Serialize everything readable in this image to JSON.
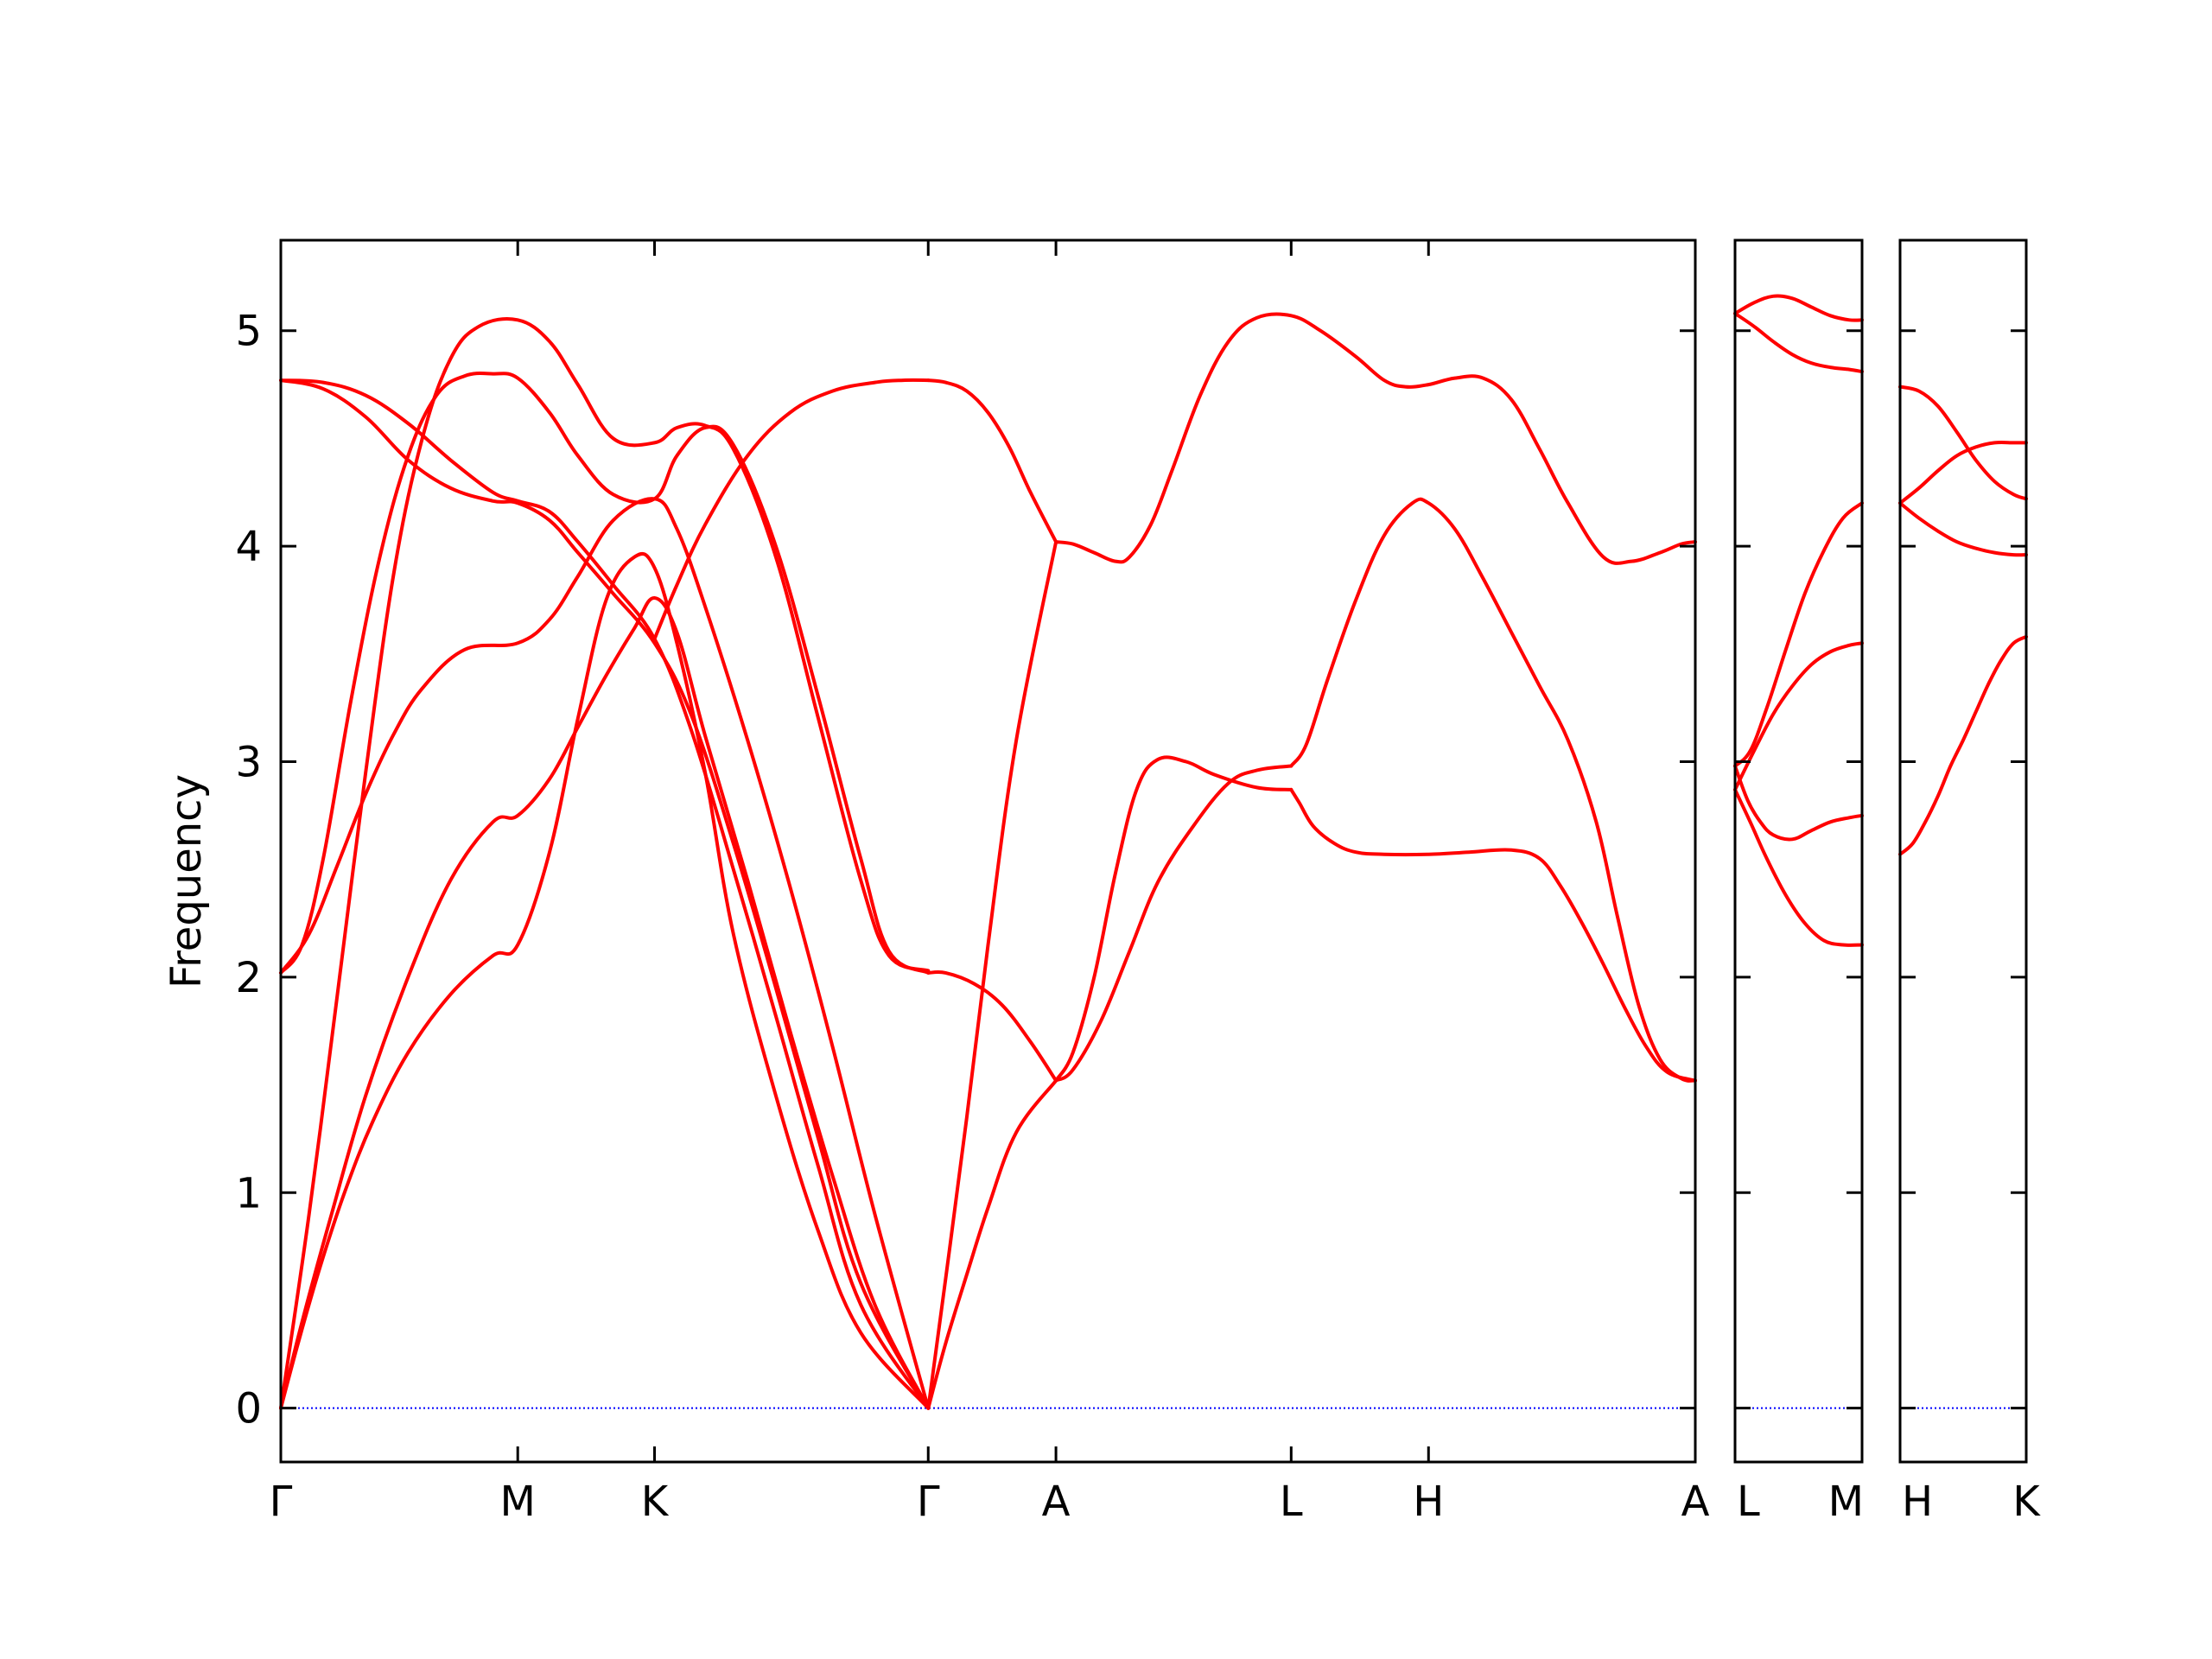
{
  "chart_data": {
    "type": "line",
    "title": "",
    "ylabel": "Frequency",
    "ylim": [
      -0.25,
      5.42
    ],
    "yticks": [
      0,
      1,
      2,
      3,
      4,
      5
    ],
    "line_color": "#ff0000",
    "zero_line_color": "#0000ff",
    "grid": false,
    "panels": [
      {
        "name": "Γ-M-K-Γ-A-L-H-A",
        "xlim": [
          0,
          1
        ],
        "high_symmetry_points": [
          {
            "label": "Γ",
            "x": 0.0
          },
          {
            "label": "M",
            "x": 0.1675
          },
          {
            "label": "K",
            "x": 0.2642
          },
          {
            "label": "Γ",
            "x": 0.4577
          },
          {
            "label": "A",
            "x": 0.548
          },
          {
            "label": "L",
            "x": 0.7143
          },
          {
            "label": "H",
            "x": 0.8114
          },
          {
            "label": "A",
            "x": 1.0
          }
        ],
        "bands": [
          {
            "x": [
              0,
              0.013,
              0.028,
              0.045,
              0.065,
              0.09,
              0.12,
              0.15,
              0.1675,
              0.19,
              0.21,
              0.23,
              0.25,
              0.2642,
              0.28,
              0.3,
              0.32,
              0.35,
              0.38,
              0.41,
              0.4577
            ],
            "y": [
              0,
              0.32,
              0.66,
              1.0,
              1.33,
              1.65,
              1.92,
              2.1,
              2.15,
              2.58,
              3.2,
              3.75,
              3.95,
              3.9,
              3.55,
              2.95,
              2.2,
              1.45,
              0.82,
              0.35,
              0
            ]
          },
          {
            "x": [
              0,
              0.015,
              0.035,
              0.06,
              0.09,
              0.12,
              0.15,
              0.1675,
              0.19,
              0.21,
              0.23,
              0.25,
              0.2642,
              0.28,
              0.3,
              0.33,
              0.36,
              0.39,
              0.42,
              0.4577
            ],
            "y": [
              0,
              0.4,
              0.88,
              1.45,
              2.0,
              2.45,
              2.72,
              2.75,
              2.92,
              3.16,
              3.4,
              3.62,
              3.76,
              3.6,
              3.12,
              2.45,
              1.75,
              1.08,
              0.48,
              0
            ]
          },
          {
            "x": [
              0,
              0.02,
              0.04,
              0.06,
              0.08,
              0.1,
              0.13,
              0.1675,
              0.19,
              0.21,
              0.235,
              0.2642,
              0.28,
              0.3,
              0.33,
              0.36,
              0.39,
              0.42,
              0.4577
            ],
            "y": [
              2.02,
              2.2,
              2.52,
              2.85,
              3.13,
              3.34,
              3.52,
              3.55,
              3.66,
              3.86,
              4.12,
              4.22,
              4.08,
              3.72,
              3.1,
              2.42,
              1.68,
              0.9,
              0
            ]
          },
          {
            "x": [
              0,
              0.015,
              0.03,
              0.05,
              0.07,
              0.09,
              0.11,
              0.13,
              0.15,
              0.1675,
              0.19,
              0.21,
              0.235,
              0.2642,
              0.28,
              0.3,
              0.32,
              0.35,
              0.38,
              0.41,
              0.43,
              0.4577
            ],
            "y": [
              2.02,
              2.15,
              2.55,
              3.3,
              3.95,
              4.42,
              4.7,
              4.79,
              4.8,
              4.78,
              4.62,
              4.42,
              4.24,
              4.22,
              4.42,
              4.55,
              4.47,
              4.0,
              3.3,
              2.55,
              2.12,
              2.02
            ]
          },
          {
            "x": [
              0,
              0.02,
              0.04,
              0.06,
              0.08,
              0.1,
              0.12,
              0.14,
              0.1675,
              0.19,
              0.21,
              0.235,
              0.2642,
              0.28,
              0.3,
              0.32,
              0.35,
              0.38,
              0.41,
              0.43,
              0.4577
            ],
            "y": [
              0,
              0.9,
              1.92,
              2.95,
              3.88,
              4.5,
              4.87,
              5.02,
              5.05,
              4.95,
              4.75,
              4.5,
              4.48,
              4.55,
              4.56,
              4.45,
              3.95,
              3.2,
              2.45,
              2.1,
              2.03
            ]
          },
          {
            "x": [
              0,
              0.03,
              0.06,
              0.09,
              0.12,
              0.15,
              0.1675,
              0.19,
              0.21,
              0.235,
              0.2642,
              0.29,
              0.32,
              0.35,
              0.38,
              0.41,
              0.4577
            ],
            "y": [
              4.77,
              4.73,
              4.6,
              4.4,
              4.27,
              4.21,
              4.2,
              4.12,
              3.97,
              3.78,
              3.55,
              3.22,
              2.62,
              1.95,
              1.25,
              0.58,
              0
            ]
          },
          {
            "x": [
              0,
              0.03,
              0.06,
              0.09,
              0.12,
              0.15,
              0.1675,
              0.19,
              0.21,
              0.235,
              0.2642,
              0.29,
              0.32,
              0.35,
              0.38,
              0.41,
              0.4577
            ],
            "y": [
              4.77,
              4.76,
              4.7,
              4.57,
              4.4,
              4.25,
              4.21,
              4.16,
              4.02,
              3.82,
              3.57,
              3.15,
              2.5,
              1.82,
              1.12,
              0.48,
              0
            ]
          },
          {
            "x": [
              0.2642,
              0.28,
              0.3,
              0.33,
              0.36,
              0.39,
              0.42,
              0.44,
              0.4577
            ],
            "y": [
              3.57,
              3.82,
              4.1,
              4.42,
              4.62,
              4.72,
              4.76,
              4.77,
              4.77
            ]
          },
          {
            "x": [
              0.4577,
              0.47,
              0.485,
              0.5,
              0.515,
              0.53,
              0.548
            ],
            "y": [
              4.77,
              4.76,
              4.72,
              4.62,
              4.46,
              4.25,
              4.02
            ]
          },
          {
            "x": [
              0.4577,
              0.47,
              0.485,
              0.5,
              0.52,
              0.548
            ],
            "y": [
              0,
              0.6,
              1.35,
              2.15,
              3.1,
              4.02
            ]
          },
          {
            "x": [
              0.4577,
              0.47,
              0.485,
              0.5,
              0.52,
              0.548
            ],
            "y": [
              0,
              0.3,
              0.62,
              0.93,
              1.28,
              1.52
            ]
          },
          {
            "x": [
              0.4577,
              0.47,
              0.49,
              0.51,
              0.53,
              0.548
            ],
            "y": [
              2.02,
              2.02,
              1.97,
              1.87,
              1.7,
              1.52
            ]
          },
          {
            "x": [
              0.548,
              0.56,
              0.575,
              0.59,
              0.605,
              0.62,
              0.64,
              0.66,
              0.69,
              0.7143
            ],
            "y": [
              1.52,
              1.65,
              2.0,
              2.48,
              2.87,
              3.01,
              3.0,
              2.94,
              2.88,
              2.87
            ]
          },
          {
            "x": [
              0.548,
              0.56,
              0.58,
              0.6,
              0.62,
              0.645,
              0.67,
              0.69,
              0.7143
            ],
            "y": [
              1.52,
              1.57,
              1.8,
              2.12,
              2.44,
              2.7,
              2.9,
              2.96,
              2.98
            ]
          },
          {
            "x": [
              0.7143,
              0.72,
              0.73,
              0.745,
              0.76,
              0.78,
              0.8114,
              0.84,
              0.87,
              0.89,
              0.905,
              0.92,
              0.935,
              0.95,
              0.965,
              0.98,
              1.0
            ],
            "y": [
              2.87,
              2.81,
              2.7,
              2.62,
              2.58,
              2.57,
              2.57,
              2.58,
              2.59,
              2.55,
              2.42,
              2.25,
              2.06,
              1.86,
              1.68,
              1.56,
              1.52
            ]
          },
          {
            "x": [
              0.7143,
              0.725,
              0.74,
              0.76,
              0.78,
              0.8,
              0.8114,
              0.83,
              0.85,
              0.87,
              0.89,
              0.91,
              0.93,
              0.945,
              0.96,
              0.975,
              0.99,
              1.0
            ],
            "y": [
              2.98,
              3.08,
              3.38,
              3.75,
              4.05,
              4.2,
              4.2,
              4.08,
              3.85,
              3.6,
              3.35,
              3.1,
              2.72,
              2.28,
              1.87,
              1.62,
              1.53,
              1.52
            ]
          },
          {
            "x": [
              0.548,
              0.56,
              0.575,
              0.59,
              0.6,
              0.615,
              0.63,
              0.65,
              0.67,
              0.69,
              0.7143,
              0.735,
              0.76,
              0.78,
              0.795,
              0.8114,
              0.83,
              0.85,
              0.87,
              0.89,
              0.91,
              0.935,
              0.955,
              0.975,
              0.99,
              1.0
            ],
            "y": [
              4.02,
              4.01,
              3.97,
              3.93,
              3.95,
              4.1,
              4.35,
              4.7,
              4.95,
              5.06,
              5.07,
              5.0,
              4.88,
              4.77,
              4.74,
              4.75,
              4.78,
              4.78,
              4.68,
              4.45,
              4.2,
              3.95,
              3.93,
              3.97,
              4.01,
              4.02
            ]
          }
        ]
      },
      {
        "name": "L-M",
        "xlim": [
          0,
          1
        ],
        "high_symmetry_points": [
          {
            "label": "L",
            "x": 0.0
          },
          {
            "label": "M",
            "x": 1.0
          }
        ],
        "bands": [
          {
            "x": [
              0,
              0.15,
              0.3,
              0.45,
              0.6,
              0.75,
              0.9,
              1.0
            ],
            "y": [
              5.08,
              5.13,
              5.16,
              5.15,
              5.11,
              5.07,
              5.05,
              5.05
            ]
          },
          {
            "x": [
              0,
              0.15,
              0.3,
              0.45,
              0.6,
              0.75,
              0.9,
              1.0
            ],
            "y": [
              5.08,
              5.02,
              4.95,
              4.89,
              4.85,
              4.83,
              4.82,
              4.81
            ]
          },
          {
            "x": [
              0,
              0.15,
              0.3,
              0.45,
              0.6,
              0.75,
              0.9,
              1.0
            ],
            "y": [
              2.87,
              3.05,
              3.22,
              3.35,
              3.45,
              3.51,
              3.54,
              3.55
            ]
          },
          {
            "x": [
              0,
              0.12,
              0.25,
              0.4,
              0.55,
              0.7,
              0.85,
              1.0
            ],
            "y": [
              2.98,
              3.05,
              3.25,
              3.52,
              3.78,
              3.98,
              4.13,
              4.2
            ]
          },
          {
            "x": [
              0,
              0.1,
              0.2,
              0.3,
              0.45,
              0.6,
              0.75,
              0.9,
              1.0
            ],
            "y": [
              2.98,
              2.82,
              2.72,
              2.66,
              2.64,
              2.68,
              2.72,
              2.74,
              2.75
            ]
          },
          {
            "x": [
              0,
              0.12,
              0.25,
              0.4,
              0.55,
              0.7,
              0.85,
              1.0
            ],
            "y": [
              2.87,
              2.72,
              2.55,
              2.38,
              2.25,
              2.17,
              2.15,
              2.15
            ]
          }
        ]
      },
      {
        "name": "H-K",
        "xlim": [
          0,
          1
        ],
        "high_symmetry_points": [
          {
            "label": "H",
            "x": 0.0
          },
          {
            "label": "K",
            "x": 1.0
          }
        ],
        "bands": [
          {
            "x": [
              0,
              0.15,
              0.3,
              0.45,
              0.6,
              0.75,
              0.9,
              1.0
            ],
            "y": [
              4.74,
              4.72,
              4.65,
              4.53,
              4.4,
              4.3,
              4.24,
              4.22
            ]
          },
          {
            "x": [
              0,
              0.15,
              0.3,
              0.45,
              0.6,
              0.75,
              0.9,
              1.0
            ],
            "y": [
              4.2,
              4.27,
              4.35,
              4.42,
              4.46,
              4.48,
              4.48,
              4.48
            ]
          },
          {
            "x": [
              0,
              0.15,
              0.3,
              0.45,
              0.6,
              0.75,
              0.9,
              1.0
            ],
            "y": [
              4.2,
              4.13,
              4.07,
              4.02,
              3.99,
              3.97,
              3.96,
              3.96
            ]
          },
          {
            "x": [
              0,
              0.1,
              0.2,
              0.3,
              0.4,
              0.5,
              0.6,
              0.7,
              0.8,
              0.9,
              1.0
            ],
            "y": [
              2.57,
              2.62,
              2.72,
              2.84,
              2.98,
              3.1,
              3.23,
              3.36,
              3.47,
              3.55,
              3.58
            ]
          }
        ]
      }
    ]
  }
}
